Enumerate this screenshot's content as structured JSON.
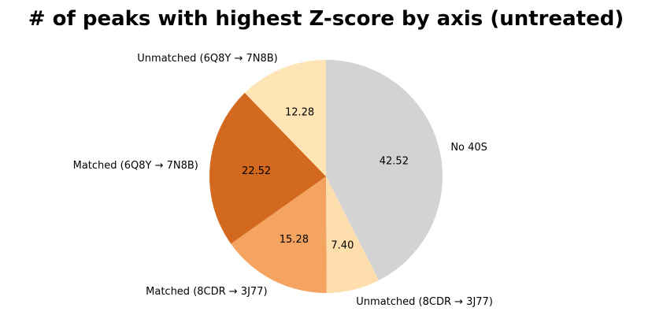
{
  "chart_data": {
    "type": "pie",
    "title": "# of peaks with highest Z-score by axis (untreated)",
    "slices": [
      {
        "label": "No 40S",
        "value": 42.52,
        "display": "42.52",
        "color": "#d3d3d3"
      },
      {
        "label": "Unmatched (8CDR → 3J77)",
        "value": 7.4,
        "display": "7.40",
        "color": "#ffdead"
      },
      {
        "label": "Matched (8CDR → 3J77)",
        "value": 15.28,
        "display": "15.28",
        "color": "#f4a460"
      },
      {
        "label": "Matched (6Q8Y → 7N8B)",
        "value": 22.52,
        "display": "22.52",
        "color": "#d2691e"
      },
      {
        "label": "Unmatched (6Q8Y → 7N8B)",
        "value": 12.28,
        "display": "12.28",
        "color": "#ffe4b5"
      }
    ],
    "start_angle_deg": 90,
    "direction": "clockwise",
    "legend": "none"
  }
}
